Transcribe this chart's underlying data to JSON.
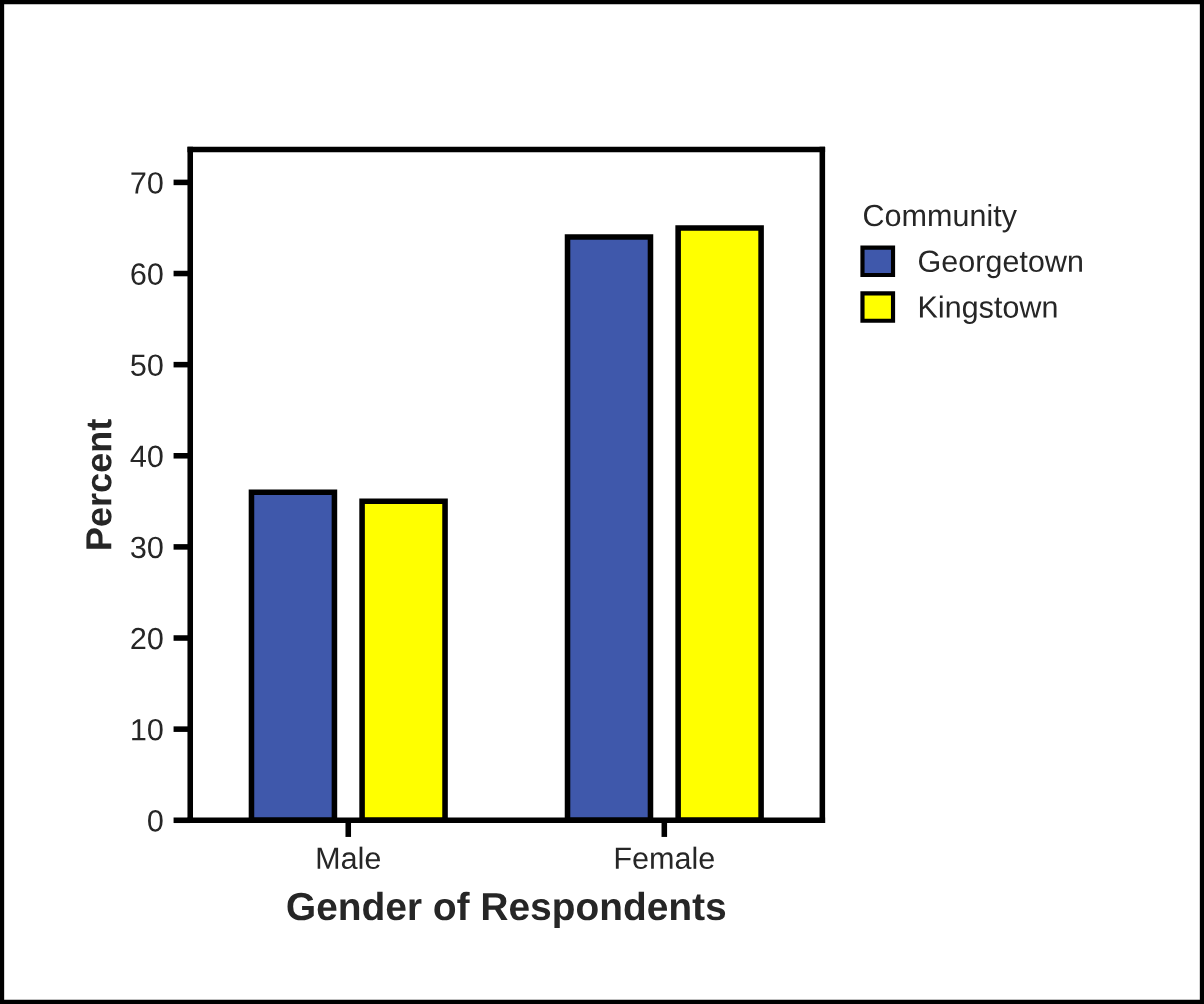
{
  "chart_data": {
    "type": "bar",
    "xlabel": "Gender of Respondents",
    "ylabel": "Percent",
    "legend_title": "Community",
    "categories": [
      "Male",
      "Female"
    ],
    "series": [
      {
        "name": "Georgetown",
        "color": "#3f58ab",
        "values": [
          36,
          64
        ]
      },
      {
        "name": "Kingstown",
        "color": "#ffff00",
        "values": [
          35,
          65
        ]
      }
    ],
    "ylim": [
      0,
      73.6
    ],
    "yticks": [
      0,
      10,
      20,
      30,
      40,
      50,
      60,
      70
    ],
    "grid": false,
    "legend": "right"
  }
}
